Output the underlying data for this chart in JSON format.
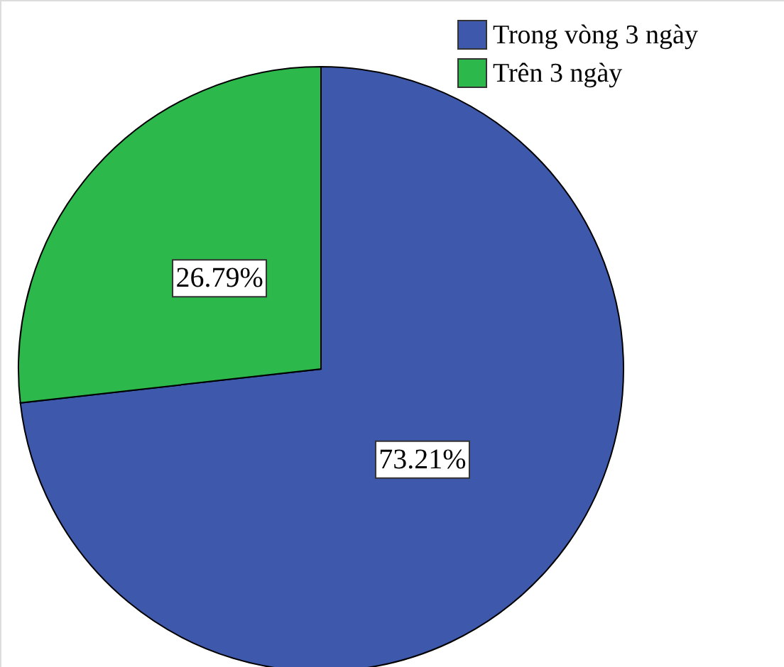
{
  "chart_data": {
    "type": "pie",
    "categories": [
      "Trong vòng 3 ngày",
      "Trên 3 ngày"
    ],
    "values": [
      73.21,
      26.79
    ],
    "colors": [
      "#3e58ac",
      "#2db84c"
    ],
    "value_labels": [
      "73.21%",
      "26.79%"
    ],
    "legend": "top right"
  }
}
